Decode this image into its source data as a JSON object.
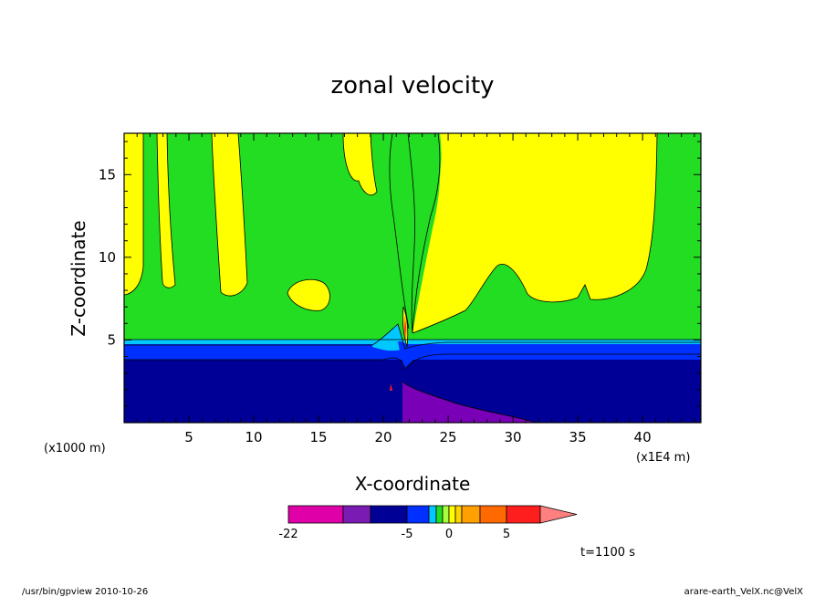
{
  "chart_data": {
    "type": "contour",
    "title": "zonal velocity",
    "xlabel": "X-coordinate",
    "ylabel": "Z-coordinate",
    "x_unit_left": "(x1000 m)",
    "x_unit_right": "(x1E4 m)",
    "x_ticks": [
      "5",
      "10",
      "15",
      "20",
      "25",
      "30",
      "35",
      "40"
    ],
    "y_ticks": [
      "5",
      "10",
      "15"
    ],
    "xlim": [
      0,
      44.5
    ],
    "ylim": [
      0,
      17.5
    ],
    "time_label": "t=1100 s",
    "colorbar": {
      "labels": [
        "-22",
        "-5",
        "0",
        "5"
      ],
      "label_positions": [
        -22,
        -5,
        0,
        5
      ],
      "levels": [
        -22,
        -15,
        -10,
        -5,
        -2,
        -1,
        -0.5,
        0,
        0.5,
        1,
        2,
        5,
        10
      ],
      "colors": [
        "#e000a8",
        "#7a1cb4",
        "#000096",
        "#0030ff",
        "#00c8ff",
        "#22dd22",
        "#a8ff40",
        "#ffff00",
        "#ffd200",
        "#ffa000",
        "#ff6a00",
        "#ff1e1e",
        "#ff8080"
      ]
    },
    "field_colors": {
      "surface_purple": "#7a00b8",
      "lower_navy": "#000096",
      "blue_band": "#0030ff",
      "cyan_band": "#00c8ff",
      "background_green": "#22dd22",
      "positive_yellow": "#ffff00",
      "core_orange": "#ffa000",
      "core_red": "#ff1e1e"
    }
  },
  "footer": {
    "left": "/usr/bin/gpview   2010-10-26",
    "right": "arare-earth_VelX.nc@VelX"
  }
}
